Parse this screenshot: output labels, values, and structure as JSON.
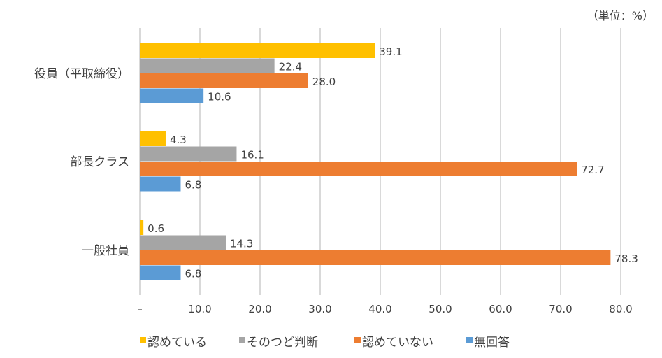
{
  "chart_data": {
    "type": "bar",
    "orientation": "horizontal",
    "unit_label": "（単位：%）",
    "categories": [
      "役員（平取締役）",
      "部長クラス",
      "一般社員"
    ],
    "series": [
      {
        "name": "認めている",
        "color": "#FFC000",
        "values": [
          39.1,
          4.3,
          0.6
        ]
      },
      {
        "name": "そのつど判断",
        "color": "#A5A5A5",
        "values": [
          22.4,
          16.1,
          14.3
        ]
      },
      {
        "name": "認めていない",
        "color": "#ED7D31",
        "values": [
          28.0,
          72.7,
          78.3
        ]
      },
      {
        "name": "無回答",
        "color": "#5B9BD5",
        "values": [
          10.6,
          6.8,
          6.8
        ]
      }
    ],
    "xlim": [
      0,
      80
    ],
    "xticks": [
      0,
      10,
      20,
      30,
      40,
      50,
      60,
      70,
      80
    ],
    "xtick_labels": [
      "–",
      "10.0",
      "20.0",
      "30.0",
      "40.0",
      "50.0",
      "60.0",
      "70.0",
      "80.0"
    ],
    "grid": true,
    "legend": "bottom"
  }
}
